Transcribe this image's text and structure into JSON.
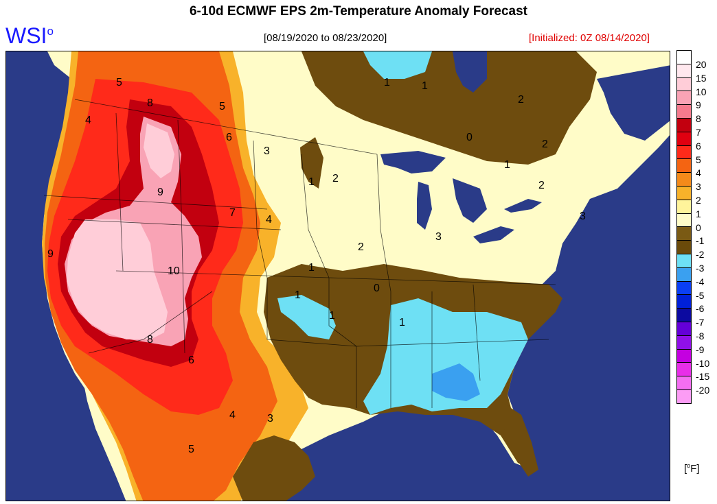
{
  "header": {
    "title": "6-10d ECMWF EPS 2m-Temperature Anomaly Forecast",
    "logo_text": "WSI",
    "logo_superscript": "o",
    "period": "[08/19/2020 to 08/23/2020]",
    "initialized": "[Initialized: 0Z 08/14/2020]"
  },
  "legend": {
    "units_degree": "o",
    "units_letter": "F",
    "entries": [
      {
        "label": "20",
        "color": "#ffe8ee"
      },
      {
        "label": "15",
        "color": "#ffcdd8"
      },
      {
        "label": "10",
        "color": "#f9a3b5"
      },
      {
        "label": "9",
        "color": "#f57a8d"
      },
      {
        "label": "8",
        "color": "#c2000f"
      },
      {
        "label": "7",
        "color": "#e00010"
      },
      {
        "label": "6",
        "color": "#ff2a1a"
      },
      {
        "label": "5",
        "color": "#f46412"
      },
      {
        "label": "4",
        "color": "#f48a1a"
      },
      {
        "label": "3",
        "color": "#f8b22a"
      },
      {
        "label": "2",
        "color": "#fff49b"
      },
      {
        "label": "1",
        "color": "#fffcc8"
      },
      {
        "label": "0",
        "color": "#7a5a14"
      },
      {
        "label": "-1",
        "color": "#6a4a0a"
      },
      {
        "label": "-2",
        "color": "#6ee0f4"
      },
      {
        "label": "-3",
        "color": "#3aa0f0"
      },
      {
        "label": "-4",
        "color": "#0a3ff5"
      },
      {
        "label": "-5",
        "color": "#0020d8"
      },
      {
        "label": "-6",
        "color": "#0c0aa0"
      },
      {
        "label": "-7",
        "color": "#6400d8"
      },
      {
        "label": "-8",
        "color": "#9010e8"
      },
      {
        "label": "-9",
        "color": "#c400e0"
      },
      {
        "label": "-10",
        "color": "#e82ee8"
      },
      {
        "label": "-15",
        "color": "#f46ef2"
      },
      {
        "label": "-20",
        "color": "#fc9cf5"
      }
    ],
    "extra_top_swatch": "#ffffff"
  },
  "contour_labels": [
    "5",
    "4",
    "8",
    "5",
    "6",
    "3",
    "1",
    "2",
    "9",
    "7",
    "4",
    "10",
    "8",
    "9",
    "6",
    "4",
    "5",
    "3",
    "2",
    "1",
    "0",
    "1",
    "1",
    "3",
    "1",
    "0",
    "1",
    "2",
    "1",
    "2",
    "3",
    "2",
    "1"
  ],
  "colors": {
    "ocean": "#2a3b88",
    "canada_land": "#fffcc8",
    "brown": "#6e4c0e"
  }
}
